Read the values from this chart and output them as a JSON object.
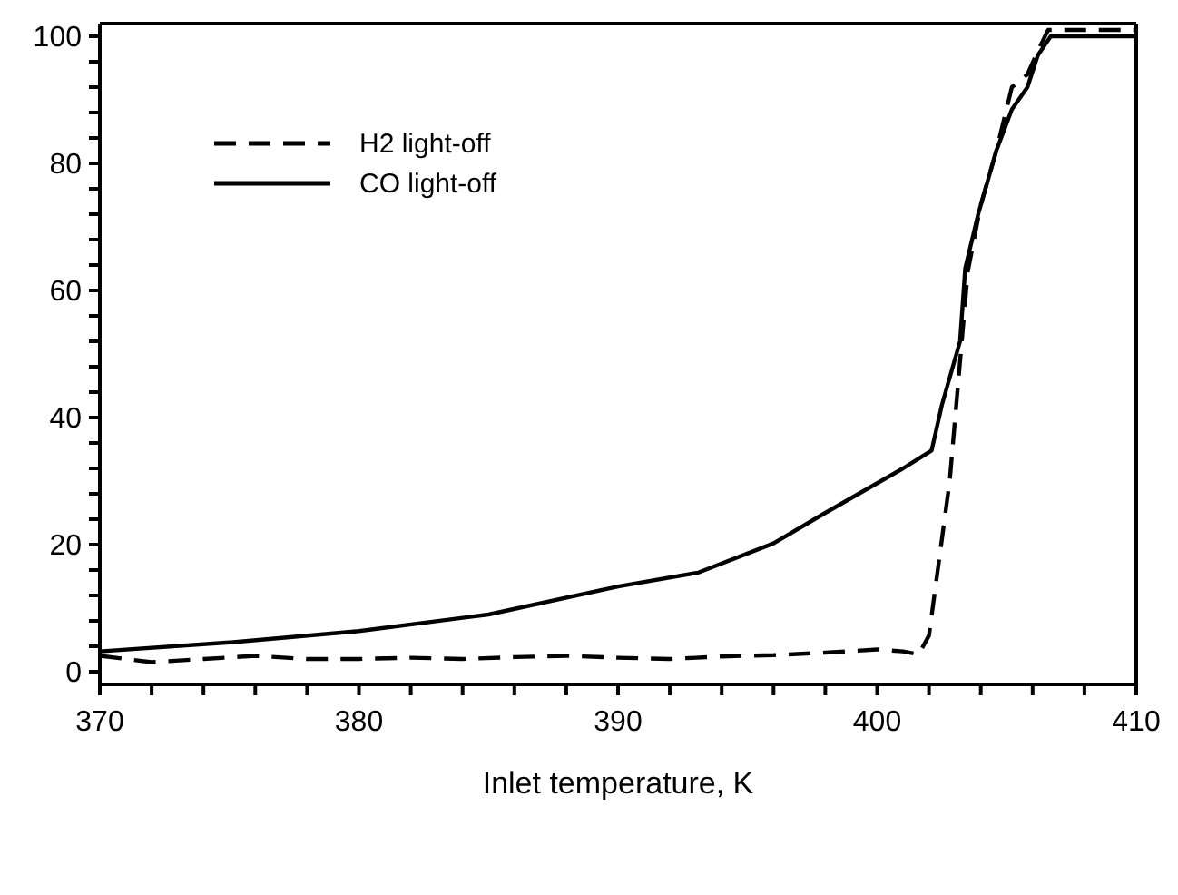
{
  "chart_data": {
    "type": "line",
    "xlabel": "Inlet temperature, K",
    "xlim": [
      370,
      410
    ],
    "ylim": [
      -2,
      102
    ],
    "xticks": [
      370,
      {
        "value": 372,
        "label": null
      },
      {
        "value": 374,
        "label": null
      },
      {
        "value": 376,
        "label": null
      },
      {
        "value": 378,
        "label": null
      },
      380,
      {
        "value": 382,
        "label": null
      },
      {
        "value": 384,
        "label": null
      },
      {
        "value": 386,
        "label": null
      },
      {
        "value": 388,
        "label": null
      },
      390,
      {
        "value": 392,
        "label": null
      },
      {
        "value": 394,
        "label": null
      },
      {
        "value": 396,
        "label": null
      },
      {
        "value": 398,
        "label": null
      },
      400,
      {
        "value": 402,
        "label": null
      },
      {
        "value": 404,
        "label": null
      },
      {
        "value": 406,
        "label": null
      },
      {
        "value": 408,
        "label": null
      },
      410
    ],
    "yticks": [
      0,
      {
        "value": 4,
        "label": null
      },
      {
        "value": 8,
        "label": null
      },
      {
        "value": 12,
        "label": null
      },
      {
        "value": 16,
        "label": null
      },
      20,
      {
        "value": 24,
        "label": null
      },
      {
        "value": 28,
        "label": null
      },
      {
        "value": 32,
        "label": null
      },
      {
        "value": 36,
        "label": null
      },
      40,
      {
        "value": 44,
        "label": null
      },
      {
        "value": 48,
        "label": null
      },
      {
        "value": 52,
        "label": null
      },
      {
        "value": 56,
        "label": null
      },
      60,
      {
        "value": 64,
        "label": null
      },
      {
        "value": 68,
        "label": null
      },
      {
        "value": 72,
        "label": null
      },
      {
        "value": 76,
        "label": null
      },
      80,
      {
        "value": 84,
        "label": null
      },
      {
        "value": 88,
        "label": null
      },
      {
        "value": 92,
        "label": null
      },
      {
        "value": 96,
        "label": null
      },
      100
    ],
    "grid": false,
    "legend": "top left",
    "marker": "none",
    "series": [
      {
        "name": "H2 light-off",
        "color": "#000000",
        "line_style": "dashed",
        "x": [
          370,
          371,
          372,
          374,
          376,
          378,
          380,
          382,
          384,
          386,
          388,
          390,
          392,
          394,
          396,
          398,
          400,
          401,
          401.6,
          402,
          402.8,
          403.5,
          404,
          404.6,
          405.2,
          405.8,
          406.2,
          406.6,
          408,
          410
        ],
        "values": [
          2.5,
          2,
          1.5,
          2,
          2.5,
          2,
          2,
          2.2,
          2,
          2.3,
          2.5,
          2.2,
          2,
          2.4,
          2.6,
          3,
          3.5,
          3.2,
          2.7,
          5.7,
          30,
          63,
          73.5,
          82,
          92,
          94,
          97.7,
          101,
          101,
          101
        ]
      },
      {
        "name": "CO light-off",
        "color": "#000000",
        "line_style": "solid",
        "x": [
          370,
          375,
          380,
          385,
          390,
          393.1,
          396,
          398,
          399.5,
          401,
          402.1,
          402.5,
          403.2,
          403.4,
          403.9,
          404.6,
          405.2,
          405.8,
          406.2,
          406.7,
          408,
          410
        ],
        "values": [
          3.2,
          4.6,
          6.4,
          9,
          13.4,
          15.6,
          20.2,
          25,
          28.5,
          32,
          34.8,
          42,
          52,
          63.5,
          72,
          82,
          88.5,
          92,
          97,
          100,
          100,
          100
        ]
      }
    ]
  }
}
